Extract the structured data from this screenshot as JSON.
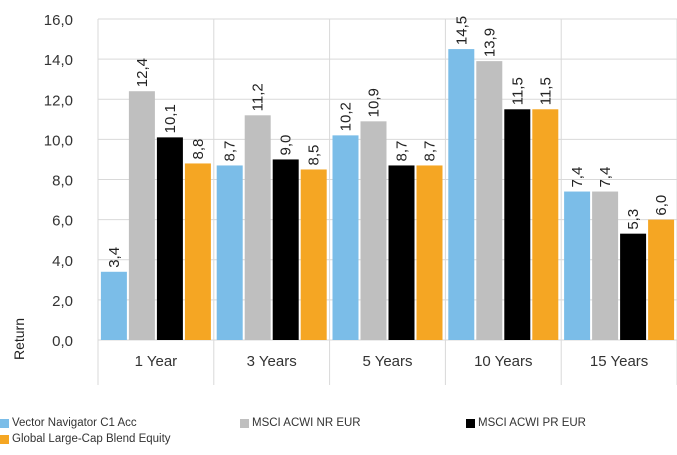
{
  "chart_data": {
    "type": "bar",
    "title": "",
    "xlabel": "",
    "ylabel": "Return",
    "ylim": [
      0,
      16
    ],
    "yticks": [
      "0,0",
      "2,0",
      "4,0",
      "6,0",
      "8,0",
      "10,0",
      "12,0",
      "14,0",
      "16,0"
    ],
    "grid": true,
    "legend_position": "bottom",
    "categories": [
      "1 Year",
      "3 Years",
      "5 Years",
      "10 Years",
      "15 Years"
    ],
    "series": [
      {
        "name": "Vector Navigator C1 Acc",
        "color": "#7bbde8",
        "values": [
          3.4,
          8.7,
          10.2,
          14.5,
          7.4
        ],
        "labels": [
          "3,4",
          "8,7",
          "10,2",
          "14,5",
          "7,4"
        ]
      },
      {
        "name": "MSCI ACWI NR EUR",
        "color": "#bfbfbf",
        "values": [
          12.4,
          11.2,
          10.9,
          13.9,
          7.4
        ],
        "labels": [
          "12,4",
          "11,2",
          "10,9",
          "13,9",
          "7,4"
        ]
      },
      {
        "name": "MSCI ACWI PR EUR",
        "color": "#000000",
        "values": [
          10.1,
          9.0,
          8.7,
          11.5,
          5.3
        ],
        "labels": [
          "10,1",
          "9,0",
          "8,7",
          "11,5",
          "5,3"
        ]
      },
      {
        "name": "Global Large-Cap Blend Equity",
        "color": "#f5a623",
        "values": [
          8.8,
          8.5,
          8.7,
          11.5,
          6.0
        ],
        "labels": [
          "8,8",
          "8,5",
          "8,7",
          "11,5",
          "6,0"
        ]
      }
    ]
  }
}
